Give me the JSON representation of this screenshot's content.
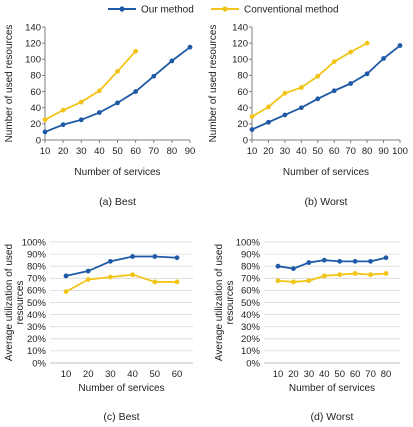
{
  "legend": {
    "position": "top",
    "entries": [
      {
        "label": "Our method",
        "color": "#1f5aa6"
      },
      {
        "label": "Conventional method",
        "color": "#f2c417"
      }
    ]
  },
  "chart_data": [
    {
      "type": "line",
      "caption": "(a) Best",
      "xlabel": "Number of services",
      "ylabel": "Number of used resources",
      "x": [
        10,
        20,
        30,
        40,
        50,
        60,
        70,
        80,
        90
      ],
      "xlim": [
        10,
        90
      ],
      "ylim": [
        0,
        140
      ],
      "yticks": [
        0,
        20,
        40,
        60,
        80,
        100,
        120,
        140
      ],
      "ytick_labels": [
        "0",
        "20",
        "40",
        "60",
        "80",
        "100",
        "120",
        "140"
      ],
      "grid": false,
      "series": [
        {
          "name": "Our method",
          "color": "#1f5aa6",
          "x": [
            10,
            20,
            30,
            40,
            50,
            60,
            70,
            80,
            90
          ],
          "values": [
            10,
            19,
            25,
            34,
            46,
            60,
            79,
            98,
            115
          ]
        },
        {
          "name": "Conventional method",
          "color": "#f2c417",
          "x": [
            10,
            20,
            30,
            40,
            50,
            60
          ],
          "values": [
            25,
            37,
            47,
            61,
            85,
            110
          ]
        }
      ]
    },
    {
      "type": "line",
      "caption": "(b) Worst",
      "xlabel": "Number of services",
      "ylabel": "Number of used resources",
      "x": [
        10,
        20,
        30,
        40,
        50,
        60,
        70,
        80,
        90,
        100
      ],
      "xlim": [
        10,
        100
      ],
      "ylim": [
        0,
        140
      ],
      "yticks": [
        0,
        20,
        40,
        60,
        80,
        100,
        120,
        140
      ],
      "ytick_labels": [
        "0",
        "20",
        "40",
        "60",
        "80",
        "100",
        "120",
        "140"
      ],
      "grid": false,
      "series": [
        {
          "name": "Our method",
          "color": "#1f5aa6",
          "x": [
            10,
            20,
            30,
            40,
            50,
            60,
            70,
            80,
            90,
            100
          ],
          "values": [
            13,
            22,
            31,
            40,
            51,
            61,
            70,
            82,
            101,
            117
          ]
        },
        {
          "name": "Conventional method",
          "color": "#f2c417",
          "x": [
            10,
            20,
            30,
            40,
            50,
            60,
            70,
            80
          ],
          "values": [
            29,
            41,
            58,
            65,
            79,
            97,
            109,
            120
          ]
        }
      ]
    },
    {
      "type": "line",
      "caption": "(c) Best",
      "xlabel": "Number of services",
      "ylabel": "Average utilization of used resources",
      "x": [
        10,
        20,
        30,
        40,
        50,
        60
      ],
      "xlim": [
        10,
        60
      ],
      "ylim": [
        0,
        100
      ],
      "yticks": [
        0,
        10,
        20,
        30,
        40,
        50,
        60,
        70,
        80,
        90,
        100
      ],
      "ytick_labels": [
        "0%",
        "10%",
        "20%",
        "30%",
        "40%",
        "50%",
        "60%",
        "70%",
        "80%",
        "90%",
        "100%"
      ],
      "grid": true,
      "series": [
        {
          "name": "Our method",
          "color": "#1f5aa6",
          "x": [
            10,
            20,
            30,
            40,
            50,
            60
          ],
          "values": [
            72,
            76,
            84,
            88,
            88,
            87
          ]
        },
        {
          "name": "Conventional method",
          "color": "#f2c417",
          "x": [
            10,
            20,
            30,
            40,
            50,
            60
          ],
          "values": [
            59,
            69,
            71,
            73,
            67,
            67
          ]
        }
      ]
    },
    {
      "type": "line",
      "caption": "(d) Worst",
      "xlabel": "Number of services",
      "ylabel": "Average utilization of used resources",
      "x": [
        10,
        20,
        30,
        40,
        50,
        60,
        70,
        80
      ],
      "xlim": [
        10,
        80
      ],
      "ylim": [
        0,
        100
      ],
      "yticks": [
        0,
        10,
        20,
        30,
        40,
        50,
        60,
        70,
        80,
        90,
        100
      ],
      "ytick_labels": [
        "0%",
        "10%",
        "20%",
        "30%",
        "40%",
        "50%",
        "60%",
        "70%",
        "80%",
        "90%",
        "100%"
      ],
      "grid": true,
      "series": [
        {
          "name": "Our method",
          "color": "#1f5aa6",
          "x": [
            10,
            20,
            30,
            40,
            50,
            60,
            70,
            80
          ],
          "values": [
            80,
            78,
            83,
            85,
            84,
            84,
            84,
            87
          ]
        },
        {
          "name": "Conventional method",
          "color": "#f2c417",
          "x": [
            10,
            20,
            30,
            40,
            50,
            60,
            70,
            80
          ],
          "values": [
            68,
            67,
            68,
            72,
            73,
            74,
            73,
            74
          ]
        }
      ]
    }
  ]
}
